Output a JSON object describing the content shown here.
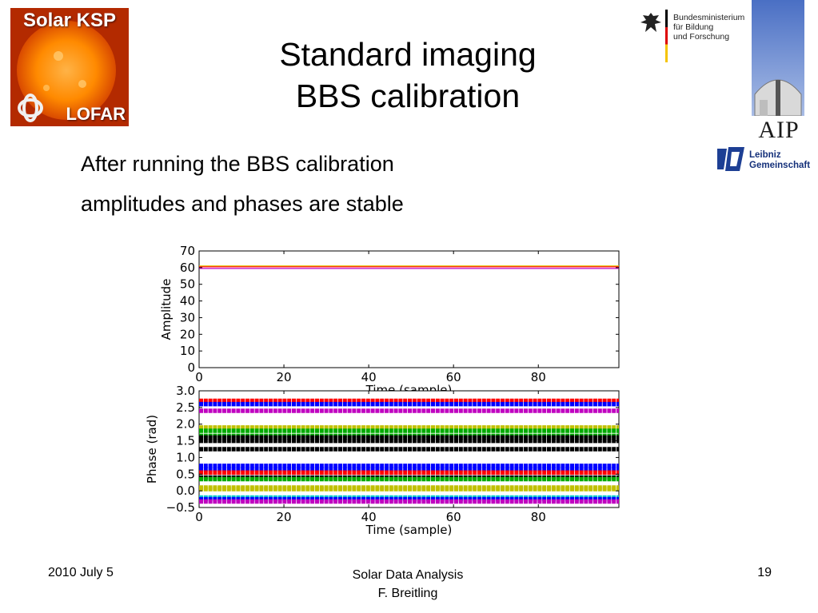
{
  "slide": {
    "title_line1": "Standard imaging",
    "title_line2": "BBS calibration",
    "body_line1": "After running the BBS calibration",
    "body_line2": "amplitudes and phases are stable"
  },
  "logos": {
    "ksp_top": "Solar KSP",
    "ksp_bottom": "LOFAR",
    "bmbf_line1": "Bundesministerium",
    "bmbf_line2": "für Bildung",
    "bmbf_line3": "und Forschung",
    "aip": "AIP",
    "leibniz_line1": "Leibniz",
    "leibniz_line2": "Gemeinschaft"
  },
  "footer": {
    "date": "2010 July 5",
    "center_line1": "Solar Data Analysis",
    "center_line2": "F. Breitling",
    "page": "19"
  },
  "chart_data": [
    {
      "type": "line",
      "xlabel": "Time (sample)",
      "ylabel": "Amplitude",
      "xlim": [
        0,
        99
      ],
      "ylim": [
        0,
        70
      ],
      "xticks": [
        "0",
        "20",
        "40",
        "60",
        "80"
      ],
      "yticks": [
        "0",
        "10",
        "20",
        "30",
        "40",
        "50",
        "60",
        "70"
      ],
      "series": [
        {
          "color": "#e0c000",
          "values_constant": 61
        },
        {
          "color": "#ff0000",
          "values_constant": 60.5
        },
        {
          "color": "#c000c0",
          "values_constant": 59.5
        }
      ]
    },
    {
      "type": "scatter",
      "xlabel": "Time (sample)",
      "ylabel": "Phase (rad)",
      "xlim": [
        0,
        99
      ],
      "ylim": [
        -0.5,
        3.0
      ],
      "xticks": [
        "0",
        "20",
        "40",
        "60",
        "80"
      ],
      "yticks": [
        "−0.5",
        "0.0",
        "0.5",
        "1.0",
        "1.5",
        "2.0",
        "2.5",
        "3.0"
      ],
      "series": [
        {
          "color": "#ff0000",
          "values_constant": 2.7
        },
        {
          "color": "#0000ff",
          "values_constant": 2.6
        },
        {
          "color": "#c000c0",
          "values_constant": 2.4
        },
        {
          "color": "#c0c000",
          "values_constant": 1.9
        },
        {
          "color": "#00aa00",
          "values_constant": 1.8
        },
        {
          "color": "#00aa00",
          "values_constant": 1.65
        },
        {
          "color": "#000000",
          "values_constant": 1.6
        },
        {
          "color": "#000000",
          "values_constant": 1.5
        },
        {
          "color": "#000000",
          "values_constant": 1.25
        },
        {
          "color": "#0000ff",
          "values_constant": 0.75
        },
        {
          "color": "#0000ff",
          "values_constant": 0.65
        },
        {
          "color": "#ff0000",
          "values_constant": 0.55
        },
        {
          "color": "#000000",
          "values_constant": 0.4
        },
        {
          "color": "#00aa00",
          "values_constant": 0.35
        },
        {
          "color": "#c0c000",
          "values_constant": 0.1
        },
        {
          "color": "#c0c000",
          "values_constant": 0.05
        },
        {
          "color": "#00cccc",
          "values_constant": -0.2
        },
        {
          "color": "#0000ff",
          "values_constant": -0.25
        },
        {
          "color": "#c000c0",
          "values_constant": -0.32
        }
      ]
    }
  ]
}
